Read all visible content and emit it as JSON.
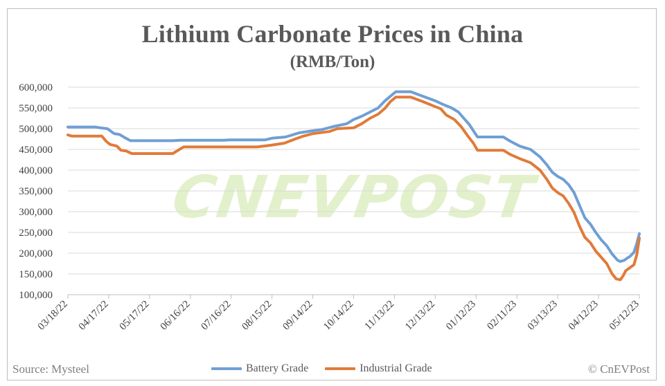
{
  "chart_data": {
    "type": "line",
    "title": "Lithium Carbonate Prices in China",
    "subtitle": "(RMB/Ton)",
    "ylim": [
      100000,
      600000
    ],
    "y_ticks": [
      "600,000",
      "550,000",
      "500,000",
      "450,000",
      "400,000",
      "350,000",
      "300,000",
      "250,000",
      "200,000",
      "150,000",
      "100,000"
    ],
    "y_tick_values": [
      600000,
      550000,
      500000,
      450000,
      400000,
      350000,
      300000,
      250000,
      200000,
      150000,
      100000
    ],
    "x_range": [
      "2022-03-18",
      "2023-05-12"
    ],
    "x_ticks": [
      {
        "date": "2022-03-18",
        "label": "03/18/22"
      },
      {
        "date": "2022-04-17",
        "label": "04/17/22"
      },
      {
        "date": "2022-05-17",
        "label": "05/17/22"
      },
      {
        "date": "2022-06-16",
        "label": "06/16/22"
      },
      {
        "date": "2022-07-16",
        "label": "07/16/22"
      },
      {
        "date": "2022-08-15",
        "label": "08/15/22"
      },
      {
        "date": "2022-09-14",
        "label": "09/14/22"
      },
      {
        "date": "2022-10-14",
        "label": "10/14/22"
      },
      {
        "date": "2022-11-13",
        "label": "11/13/22"
      },
      {
        "date": "2022-12-13",
        "label": "12/13/22"
      },
      {
        "date": "2023-01-12",
        "label": "01/12/23"
      },
      {
        "date": "2023-02-11",
        "label": "02/11/23"
      },
      {
        "date": "2023-03-13",
        "label": "03/13/23"
      },
      {
        "date": "2023-04-12",
        "label": "04/12/23"
      },
      {
        "date": "2023-05-12",
        "label": "05/12/23"
      }
    ],
    "grid": "horizontal",
    "legend_position": "bottom",
    "series": [
      {
        "name": "Battery Grade",
        "color": "#6f9fd4",
        "points": [
          [
            "2022-03-18",
            504000
          ],
          [
            "2022-04-07",
            504000
          ],
          [
            "2022-04-11",
            502000
          ],
          [
            "2022-04-16",
            500000
          ],
          [
            "2022-04-21",
            488000
          ],
          [
            "2022-04-25",
            486000
          ],
          [
            "2022-04-29",
            478000
          ],
          [
            "2022-05-03",
            471000
          ],
          [
            "2022-06-03",
            471000
          ],
          [
            "2022-06-08",
            472000
          ],
          [
            "2022-07-10",
            472000
          ],
          [
            "2022-07-15",
            473000
          ],
          [
            "2022-08-10",
            473000
          ],
          [
            "2022-08-15",
            477000
          ],
          [
            "2022-08-25",
            480000
          ],
          [
            "2022-09-04",
            490000
          ],
          [
            "2022-09-14",
            495000
          ],
          [
            "2022-09-21",
            498000
          ],
          [
            "2022-09-29",
            505000
          ],
          [
            "2022-10-09",
            512000
          ],
          [
            "2022-10-14",
            522000
          ],
          [
            "2022-10-20",
            530000
          ],
          [
            "2022-10-26",
            540000
          ],
          [
            "2022-11-01",
            550000
          ],
          [
            "2022-11-06",
            567000
          ],
          [
            "2022-11-10",
            578000
          ],
          [
            "2022-11-14",
            589000
          ],
          [
            "2022-11-25",
            589000
          ],
          [
            "2022-12-04",
            578000
          ],
          [
            "2022-12-13",
            567000
          ],
          [
            "2022-12-19",
            558000
          ],
          [
            "2022-12-25",
            550000
          ],
          [
            "2022-12-30",
            540000
          ],
          [
            "2023-01-03",
            525000
          ],
          [
            "2023-01-07",
            510000
          ],
          [
            "2023-01-10",
            495000
          ],
          [
            "2023-01-13",
            480000
          ],
          [
            "2023-02-01",
            480000
          ],
          [
            "2023-02-06",
            470000
          ],
          [
            "2023-02-13",
            458000
          ],
          [
            "2023-02-21",
            450000
          ],
          [
            "2023-02-28",
            432000
          ],
          [
            "2023-03-05",
            413000
          ],
          [
            "2023-03-09",
            395000
          ],
          [
            "2023-03-13",
            385000
          ],
          [
            "2023-03-17",
            378000
          ],
          [
            "2023-03-21",
            365000
          ],
          [
            "2023-03-25",
            346000
          ],
          [
            "2023-03-29",
            315000
          ],
          [
            "2023-04-02",
            285000
          ],
          [
            "2023-04-06",
            270000
          ],
          [
            "2023-04-10",
            250000
          ],
          [
            "2023-04-14",
            232000
          ],
          [
            "2023-04-18",
            218000
          ],
          [
            "2023-04-22",
            198000
          ],
          [
            "2023-04-26",
            183000
          ],
          [
            "2023-04-28",
            180000
          ],
          [
            "2023-05-01",
            183000
          ],
          [
            "2023-05-03",
            188000
          ],
          [
            "2023-05-05",
            192000
          ],
          [
            "2023-05-08",
            202000
          ],
          [
            "2023-05-10",
            222000
          ],
          [
            "2023-05-12",
            247000
          ]
        ]
      },
      {
        "name": "Industrial Grade",
        "color": "#e07b39",
        "points": [
          [
            "2022-03-18",
            485000
          ],
          [
            "2022-03-21",
            482000
          ],
          [
            "2022-04-12",
            482000
          ],
          [
            "2022-04-15",
            470000
          ],
          [
            "2022-04-18",
            462000
          ],
          [
            "2022-04-23",
            458000
          ],
          [
            "2022-04-26",
            448000
          ],
          [
            "2022-04-30",
            446000
          ],
          [
            "2022-05-04",
            440000
          ],
          [
            "2022-06-03",
            440000
          ],
          [
            "2022-06-08",
            450000
          ],
          [
            "2022-06-11",
            456000
          ],
          [
            "2022-08-04",
            456000
          ],
          [
            "2022-08-14",
            460000
          ],
          [
            "2022-08-24",
            465000
          ],
          [
            "2022-09-01",
            475000
          ],
          [
            "2022-09-07",
            482000
          ],
          [
            "2022-09-14",
            488000
          ],
          [
            "2022-09-26",
            493000
          ],
          [
            "2022-10-02",
            500000
          ],
          [
            "2022-10-14",
            502000
          ],
          [
            "2022-10-20",
            512000
          ],
          [
            "2022-10-26",
            525000
          ],
          [
            "2022-11-01",
            535000
          ],
          [
            "2022-11-06",
            549000
          ],
          [
            "2022-11-10",
            565000
          ],
          [
            "2022-11-14",
            576000
          ],
          [
            "2022-11-25",
            576000
          ],
          [
            "2022-12-04",
            565000
          ],
          [
            "2022-12-13",
            553000
          ],
          [
            "2022-12-17",
            548000
          ],
          [
            "2022-12-21",
            533000
          ],
          [
            "2022-12-27",
            522000
          ],
          [
            "2023-01-01",
            505000
          ],
          [
            "2023-01-06",
            482000
          ],
          [
            "2023-01-10",
            465000
          ],
          [
            "2023-01-13",
            448000
          ],
          [
            "2023-02-01",
            448000
          ],
          [
            "2023-02-06",
            438000
          ],
          [
            "2023-02-13",
            428000
          ],
          [
            "2023-02-21",
            418000
          ],
          [
            "2023-02-28",
            400000
          ],
          [
            "2023-03-05",
            378000
          ],
          [
            "2023-03-09",
            357000
          ],
          [
            "2023-03-13",
            346000
          ],
          [
            "2023-03-17",
            338000
          ],
          [
            "2023-03-21",
            320000
          ],
          [
            "2023-03-25",
            298000
          ],
          [
            "2023-03-29",
            265000
          ],
          [
            "2023-04-02",
            238000
          ],
          [
            "2023-04-06",
            225000
          ],
          [
            "2023-04-10",
            205000
          ],
          [
            "2023-04-14",
            190000
          ],
          [
            "2023-04-18",
            175000
          ],
          [
            "2023-04-22",
            150000
          ],
          [
            "2023-04-25",
            138000
          ],
          [
            "2023-04-28",
            136000
          ],
          [
            "2023-04-30",
            145000
          ],
          [
            "2023-05-02",
            158000
          ],
          [
            "2023-05-05",
            165000
          ],
          [
            "2023-05-08",
            172000
          ],
          [
            "2023-05-10",
            195000
          ],
          [
            "2023-05-12",
            236000
          ]
        ]
      }
    ]
  },
  "watermark": "CNEVPOST",
  "footer": {
    "source": "Source: Mysteel",
    "credit": "© CnEVPost"
  }
}
